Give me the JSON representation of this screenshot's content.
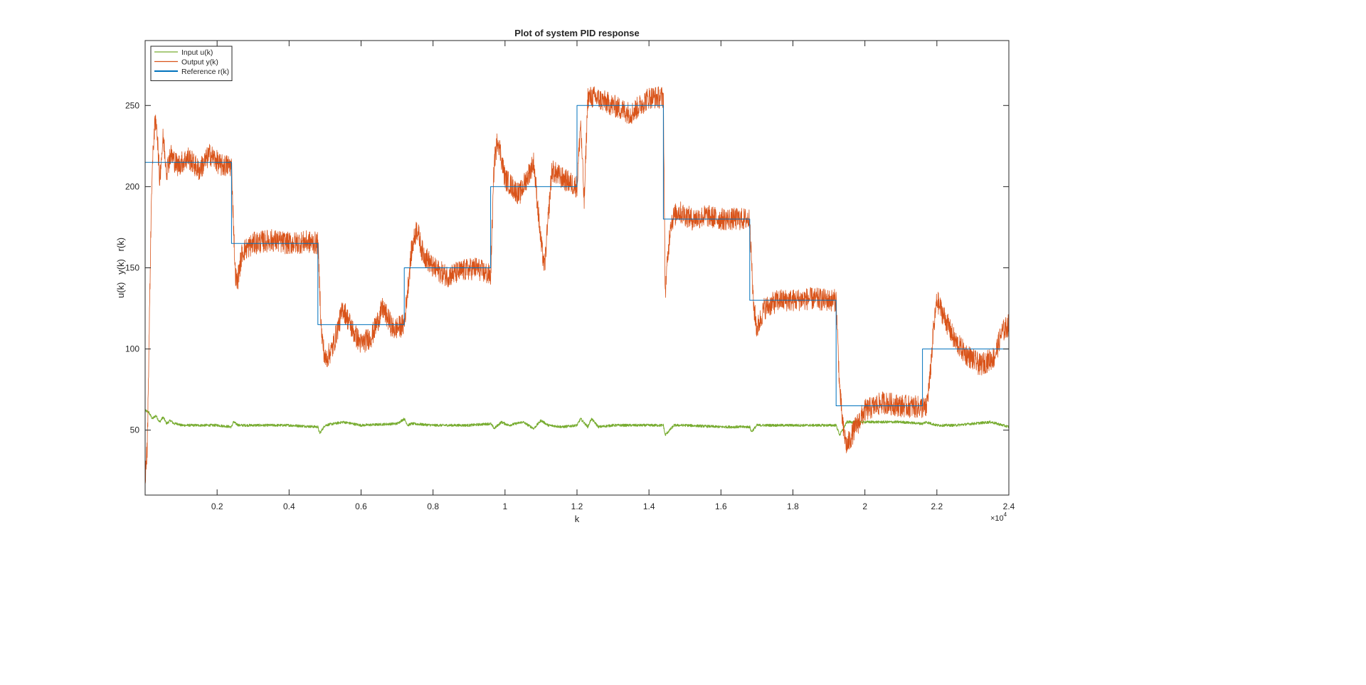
{
  "chart_data": {
    "type": "line",
    "title": "Plot of system PID response",
    "xlabel": "k",
    "ylabel": "u(k)   y(k)   r(k)",
    "xlim": [
      0,
      24000
    ],
    "ylim": [
      10,
      290
    ],
    "x_exponent_label": "×10",
    "x_exponent_power": "4",
    "x_ticks": [
      2000,
      4000,
      6000,
      8000,
      10000,
      12000,
      14000,
      16000,
      18000,
      20000,
      22000,
      24000
    ],
    "x_tick_labels": [
      "0.2",
      "0.4",
      "0.6",
      "0.8",
      "1",
      "1.2",
      "1.4",
      "1.6",
      "1.8",
      "2",
      "2.2",
      "2.4"
    ],
    "y_ticks": [
      50,
      100,
      150,
      200,
      250
    ],
    "y_tick_labels": [
      "50",
      "100",
      "150",
      "200",
      "250"
    ],
    "grid": false,
    "legend_position": "top-left",
    "series": [
      {
        "name": "Input u(k)",
        "color": "#77AC30",
        "stroke_style": "thin",
        "noise": 0.8,
        "x": [
          0,
          100,
          200,
          300,
          400,
          500,
          600,
          700,
          800,
          900,
          1000,
          1200,
          1500,
          2000,
          2400,
          2450,
          2600,
          3000,
          4000,
          4800,
          4850,
          5000,
          5500,
          6000,
          7000,
          7200,
          7300,
          7400,
          8000,
          9000,
          9600,
          9700,
          9900,
          10100,
          10500,
          10800,
          11000,
          11200,
          11600,
          12000,
          12100,
          12300,
          12400,
          12600,
          13000,
          14000,
          14400,
          14450,
          14700,
          15000,
          16000,
          16800,
          16850,
          17000,
          18000,
          19200,
          19300,
          19500,
          20000,
          21000,
          21600,
          21700,
          22000,
          22500,
          23000,
          23500,
          24000
        ],
        "y": [
          62,
          61,
          57,
          59,
          55,
          58,
          54,
          56,
          54,
          54,
          53,
          53,
          53,
          53,
          52,
          55,
          53,
          53,
          53,
          52,
          48,
          53,
          55,
          53,
          54,
          57,
          53,
          54,
          53,
          53,
          54,
          51,
          55,
          53,
          55,
          51,
          56,
          53,
          52,
          53,
          57,
          52,
          57,
          52,
          53,
          53,
          53,
          47,
          53,
          53,
          52,
          52,
          49,
          53,
          53,
          53,
          47,
          55,
          55,
          55,
          54,
          55,
          53,
          53,
          54,
          55,
          52
        ]
      },
      {
        "name": "Output y(k)",
        "color": "#D95319",
        "stroke_style": "noisy",
        "noise": 7,
        "x": [
          0,
          60,
          120,
          180,
          250,
          320,
          400,
          500,
          600,
          700,
          900,
          1200,
          1500,
          1800,
          2100,
          2400,
          2500,
          2550,
          2700,
          3000,
          3500,
          4000,
          4500,
          4800,
          4900,
          5000,
          5200,
          5500,
          5800,
          6000,
          6300,
          6600,
          6900,
          7200,
          7300,
          7400,
          7550,
          7700,
          8000,
          8400,
          8800,
          9200,
          9600,
          9700,
          9800,
          10000,
          10400,
          10800,
          11000,
          11100,
          11300,
          11600,
          12000,
          12100,
          12200,
          12300,
          12500,
          13000,
          13500,
          14000,
          14400,
          14450,
          14600,
          14800,
          15200,
          15600,
          16000,
          16400,
          16800,
          16900,
          17000,
          17200,
          17600,
          18000,
          18500,
          19000,
          19200,
          19300,
          19400,
          19500,
          19700,
          20000,
          20500,
          21000,
          21600,
          21700,
          21800,
          21900,
          22000,
          22200,
          22500,
          22800,
          23200,
          23600,
          23800,
          24000
        ],
        "y": [
          20,
          40,
          120,
          200,
          235,
          240,
          205,
          230,
          210,
          220,
          213,
          218,
          210,
          220,
          213,
          213,
          148,
          140,
          160,
          165,
          167,
          165,
          166,
          165,
          110,
          93,
          100,
          125,
          110,
          103,
          108,
          125,
          112,
          115,
          138,
          160,
          175,
          160,
          150,
          145,
          148,
          150,
          145,
          215,
          230,
          205,
          195,
          215,
          165,
          150,
          210,
          205,
          200,
          240,
          190,
          255,
          255,
          250,
          245,
          255,
          255,
          135,
          178,
          185,
          180,
          182,
          180,
          180,
          180,
          128,
          112,
          125,
          130,
          130,
          131,
          130,
          130,
          75,
          50,
          40,
          50,
          62,
          67,
          65,
          64,
          63,
          80,
          110,
          130,
          120,
          105,
          97,
          90,
          95,
          110,
          115
        ]
      },
      {
        "name": "Reference r(k)",
        "color": "#0072BD",
        "stroke_style": "step",
        "noise": 0,
        "x": [
          0,
          2400,
          2400,
          4800,
          4800,
          7200,
          7200,
          9600,
          9600,
          12000,
          12000,
          14400,
          14400,
          16800,
          16800,
          19200,
          19200,
          21600,
          21600,
          24000
        ],
        "y": [
          215,
          215,
          165,
          165,
          115,
          115,
          150,
          150,
          200,
          200,
          250,
          250,
          180,
          180,
          130,
          130,
          65,
          65,
          100,
          100
        ]
      }
    ]
  }
}
